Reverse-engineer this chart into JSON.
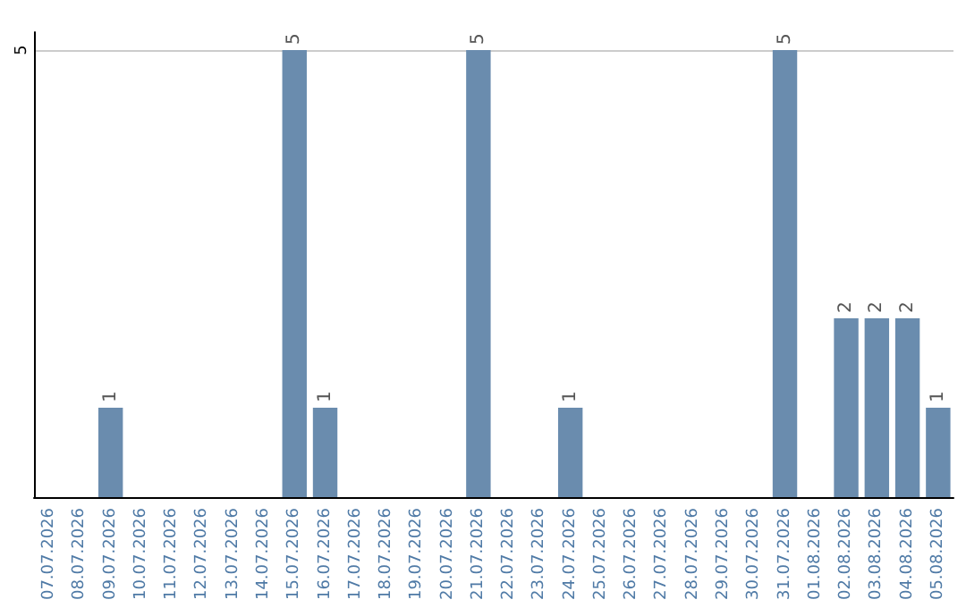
{
  "chart_data": {
    "type": "bar",
    "categories": [
      "07.07.2026",
      "08.07.2026",
      "09.07.2026",
      "10.07.2026",
      "11.07.2026",
      "12.07.2026",
      "13.07.2026",
      "14.07.2026",
      "15.07.2026",
      "16.07.2026",
      "17.07.2026",
      "18.07.2026",
      "19.07.2026",
      "20.07.2026",
      "21.07.2026",
      "22.07.2026",
      "23.07.2026",
      "24.07.2026",
      "25.07.2026",
      "26.07.2026",
      "27.07.2026",
      "28.07.2026",
      "29.07.2026",
      "30.07.2026",
      "31.07.2026",
      "01.08.2026",
      "02.08.2026",
      "03.08.2026",
      "04.08.2026",
      "05.08.2026"
    ],
    "values": [
      0,
      0,
      1,
      0,
      0,
      0,
      0,
      0,
      5,
      1,
      0,
      0,
      0,
      0,
      5,
      0,
      0,
      1,
      0,
      0,
      0,
      0,
      0,
      0,
      5,
      0,
      2,
      2,
      2,
      1
    ],
    "value_labels": [
      null,
      null,
      "1",
      null,
      null,
      null,
      null,
      null,
      "5",
      "1",
      null,
      null,
      null,
      null,
      "5",
      null,
      null,
      "1",
      null,
      null,
      null,
      null,
      null,
      null,
      "5",
      null,
      "2",
      "2",
      "2",
      "1"
    ],
    "color": "#6a8cae",
    "ylim": [
      0,
      5.2
    ],
    "yticks": [
      5
    ],
    "grid": "y"
  }
}
